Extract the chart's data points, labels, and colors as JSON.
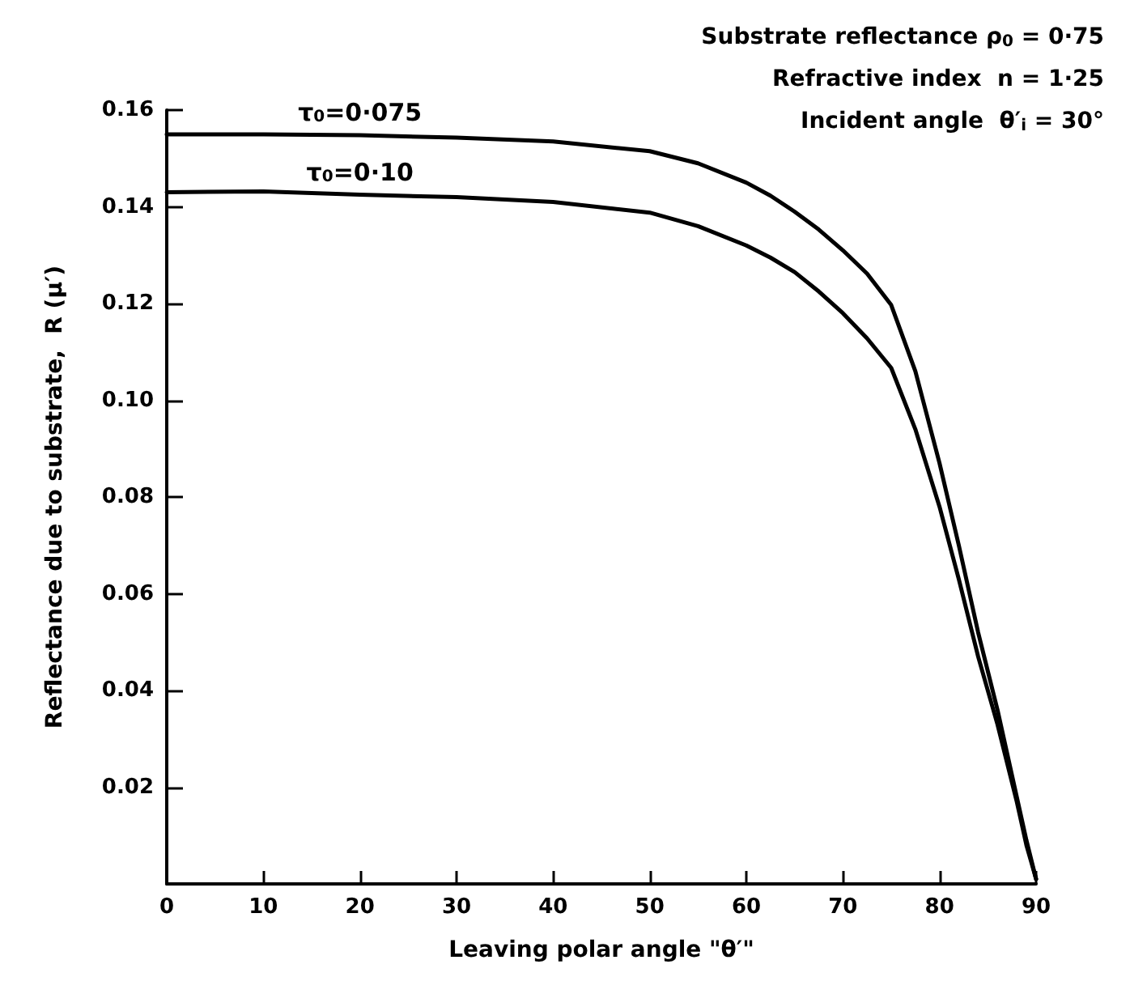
{
  "chart_data": {
    "type": "line",
    "xlabel": "Leaving polar angle \"θ′\"",
    "ylabel": "Reflectance due to substrate,  R (μ′)",
    "annotations": [
      "Substrate reflectance ρ$_{0}$ = 0·75",
      "Refractive index  n = 1·25",
      "Incident angle  θ′$_{i}$ = 30°"
    ],
    "series": [
      {
        "name": "τ$_{0}$=0·075",
        "color": "#000000",
        "x": [
          0,
          10,
          20,
          30,
          40,
          50,
          55,
          60,
          62.5,
          65,
          67.5,
          70,
          72.5,
          75,
          77.5,
          80,
          82,
          84,
          86,
          88,
          89,
          90
        ],
        "values": [
          0.155,
          0.155,
          0.1548,
          0.1543,
          0.1535,
          0.1515,
          0.149,
          0.145,
          0.1423,
          0.139,
          0.1353,
          0.131,
          0.1262,
          0.1197,
          0.106,
          0.087,
          0.07,
          0.052,
          0.036,
          0.018,
          0.009,
          0.001
        ]
      },
      {
        "name": "τ$_{0}$=0·10",
        "color": "#000000",
        "x": [
          0,
          10,
          20,
          30,
          40,
          50,
          55,
          60,
          62.5,
          65,
          67.5,
          70,
          72.5,
          75,
          77.5,
          80,
          82,
          84,
          86,
          88,
          89,
          90
        ],
        "values": [
          0.143,
          0.1432,
          0.1425,
          0.142,
          0.141,
          0.1388,
          0.136,
          0.132,
          0.1295,
          0.1265,
          0.1225,
          0.118,
          0.1128,
          0.1067,
          0.094,
          0.078,
          0.063,
          0.047,
          0.033,
          0.017,
          0.008,
          0.001
        ]
      }
    ],
    "xlim": [
      0,
      90
    ],
    "xticks": [
      0,
      10,
      20,
      30,
      40,
      50,
      60,
      70,
      80,
      90
    ],
    "ylim": [
      0,
      0.16
    ],
    "yticks": [
      0.02,
      0.04,
      0.06,
      0.08,
      {
        "value": 0.1,
        "label": "0.10"
      },
      0.12,
      0.14,
      0.16
    ],
    "grid": false,
    "legend": false,
    "marker": "none",
    "line_style": "solid"
  }
}
